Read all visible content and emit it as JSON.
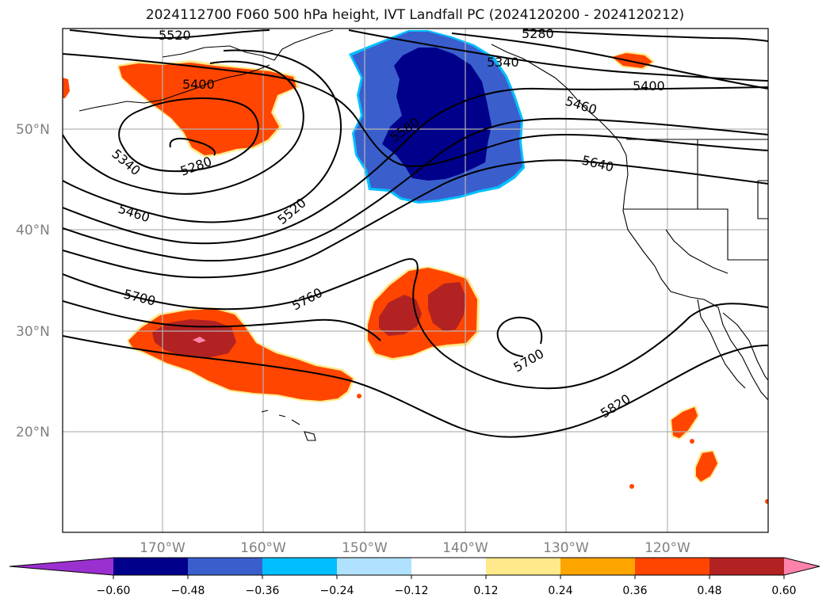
{
  "title": "2024112700 F060 500 hPa height, IVT Landfall PC (2024120200 - 2024120212)",
  "axes": {
    "lat_labels": [
      "50°N",
      "40°N",
      "30°N",
      "20°N"
    ],
    "lon_labels": [
      "170°W",
      "160°W",
      "150°W",
      "140°W",
      "130°W",
      "120°W"
    ]
  },
  "contour_labels": [
    "5520",
    "5280",
    "5340",
    "5280",
    "5400",
    "5340",
    "5460",
    "5520",
    "5580",
    "5460",
    "5400",
    "5640",
    "5700",
    "5760",
    "5700",
    "5820"
  ],
  "colorbar": {
    "ticks": [
      "−0.60",
      "−0.48",
      "−0.36",
      "−0.24",
      "−0.12",
      "0.12",
      "0.24",
      "0.36",
      "0.48",
      "0.60"
    ],
    "colors": [
      "#9b30d0",
      "#00008b",
      "#3a5fcd",
      "#00bfff",
      "#b0e2ff",
      "#ffffff",
      "#ffe98a",
      "#ffa500",
      "#ff4500",
      "#b22222",
      "#ff82ab"
    ]
  },
  "colors": {
    "gridline": "#b4b4b4",
    "contour": "#000000",
    "coastline": "#000000"
  }
}
